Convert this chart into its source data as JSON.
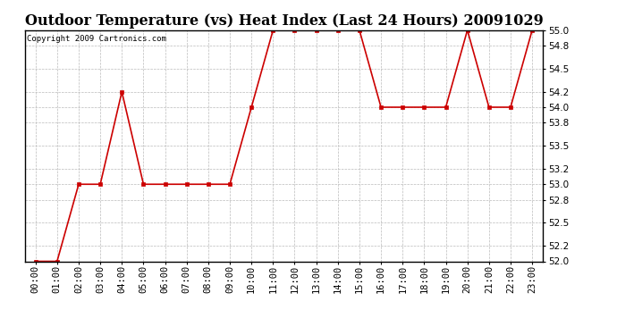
{
  "title": "Outdoor Temperature (vs) Heat Index (Last 24 Hours) 20091029",
  "copyright": "Copyright 2009 Cartronics.com",
  "x_labels": [
    "00:00",
    "01:00",
    "02:00",
    "03:00",
    "04:00",
    "05:00",
    "06:00",
    "07:00",
    "08:00",
    "09:00",
    "10:00",
    "11:00",
    "12:00",
    "13:00",
    "14:00",
    "15:00",
    "16:00",
    "17:00",
    "18:00",
    "19:00",
    "20:00",
    "21:00",
    "22:00",
    "23:00"
  ],
  "y_values": [
    52.0,
    52.0,
    53.0,
    53.0,
    54.2,
    53.0,
    53.0,
    53.0,
    53.0,
    53.0,
    54.0,
    55.0,
    55.0,
    55.0,
    55.0,
    55.0,
    54.0,
    54.0,
    54.0,
    54.0,
    55.0,
    54.0,
    54.0,
    55.0
  ],
  "line_color": "#cc0000",
  "marker_color": "#cc0000",
  "bg_color": "#ffffff",
  "grid_color": "#bbbbbb",
  "ylim_min": 52.0,
  "ylim_max": 55.0,
  "ytick_values": [
    52.0,
    52.2,
    52.5,
    52.8,
    53.0,
    53.2,
    53.5,
    53.8,
    54.0,
    54.2,
    54.5,
    54.8,
    55.0
  ],
  "title_fontsize": 11.5,
  "label_fontsize": 7.5,
  "copyright_fontsize": 6.5
}
